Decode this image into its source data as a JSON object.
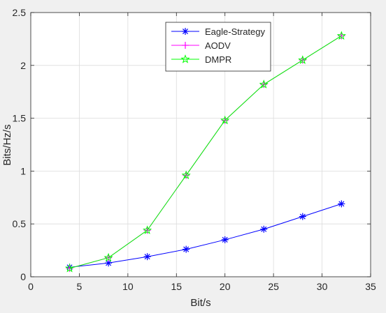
{
  "chart_data": {
    "type": "line",
    "xlabel": "Bit/s",
    "ylabel": "Bits/Hz/s",
    "xlim": [
      0,
      35
    ],
    "ylim": [
      0,
      2.5
    ],
    "xticks": [
      0,
      5,
      10,
      15,
      20,
      25,
      30,
      35
    ],
    "yticks": [
      0,
      0.5,
      1,
      1.5,
      2,
      2.5
    ],
    "xtick_labels": [
      "0",
      "5",
      "10",
      "15",
      "20",
      "25",
      "30",
      "35"
    ],
    "ytick_labels": [
      "0",
      "0.5",
      "1",
      "1.5",
      "2",
      "2.5"
    ],
    "grid": true,
    "legend_position": "top-center",
    "x": [
      4,
      8,
      12,
      16,
      20,
      24,
      28,
      32
    ],
    "series": [
      {
        "name": "Eagle-Strategy",
        "color": "#0000ff",
        "marker": "asterisk",
        "values": [
          0.09,
          0.13,
          0.19,
          0.26,
          0.35,
          0.45,
          0.57,
          0.69
        ]
      },
      {
        "name": "AODV",
        "color": "#ff00ff",
        "marker": "plus",
        "values": [
          0.08,
          0.18,
          0.44,
          0.96,
          1.48,
          1.82,
          2.05,
          2.28
        ]
      },
      {
        "name": "DMPR",
        "color": "#00ff00",
        "marker": "pentagram",
        "values": [
          0.08,
          0.18,
          0.44,
          0.96,
          1.48,
          1.82,
          2.05,
          2.28
        ]
      }
    ]
  }
}
